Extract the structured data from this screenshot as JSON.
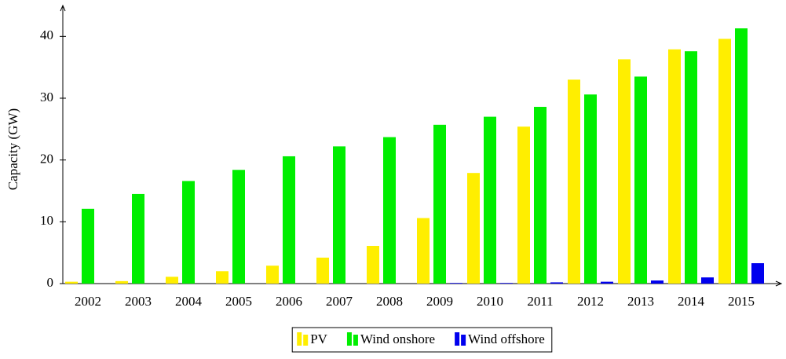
{
  "chart_data": {
    "type": "bar",
    "y_label": "Capacity (GW)",
    "categories": [
      "2002",
      "2003",
      "2004",
      "2005",
      "2006",
      "2007",
      "2008",
      "2009",
      "2010",
      "2011",
      "2012",
      "2013",
      "2014",
      "2015"
    ],
    "series": [
      {
        "name": "PV",
        "color": "#ffee00",
        "values": [
          0.3,
          0.4,
          1.1,
          2.0,
          2.9,
          4.2,
          6.1,
          10.6,
          17.9,
          25.4,
          33.0,
          36.3,
          37.9,
          39.6
        ]
      },
      {
        "name": "Wind onshore",
        "color": "#00ee00",
        "values": [
          12.1,
          14.5,
          16.6,
          18.4,
          20.6,
          22.2,
          23.7,
          25.7,
          27.0,
          28.6,
          30.6,
          33.5,
          37.6,
          41.3
        ]
      },
      {
        "name": "Wind offshore",
        "color": "#0000ee",
        "values": [
          0,
          0,
          0,
          0,
          0,
          0,
          0,
          0.1,
          0.1,
          0.2,
          0.3,
          0.5,
          1.0,
          3.3
        ]
      }
    ],
    "ylim": [
      0,
      45
    ],
    "yticks": [
      0,
      10,
      20,
      30,
      40
    ],
    "grid": false,
    "legend": "bottom"
  }
}
